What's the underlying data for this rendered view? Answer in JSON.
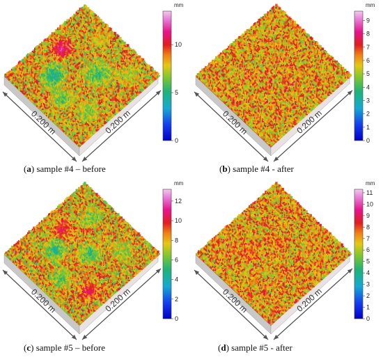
{
  "panels": [
    {
      "id": "a",
      "caption_letter": "(a)",
      "caption_letter_core": "a",
      "caption_text": " sample #4 – before",
      "colorbar": {
        "unit": "mm",
        "ticks": [
          "0",
          "5",
          "10"
        ],
        "max": 13.5
      },
      "dims": [
        "0.200 m",
        "0.200 m"
      ],
      "surface": "before",
      "blobs": [
        {
          "u": 0.32,
          "v": 0.32,
          "r": 0.16,
          "val": 0.25
        },
        {
          "u": 0.22,
          "v": 0.55,
          "r": 0.14,
          "val": 0.4
        },
        {
          "u": 0.55,
          "v": 0.18,
          "r": 0.13,
          "val": 0.95
        },
        {
          "u": 0.62,
          "v": 0.6,
          "r": 0.18,
          "val": 0.35
        },
        {
          "u": 0.3,
          "v": 0.8,
          "r": 0.14,
          "val": 0.45
        },
        {
          "u": 0.85,
          "v": 0.35,
          "r": 0.12,
          "val": 0.55
        },
        {
          "u": 0.8,
          "v": 0.8,
          "r": 0.12,
          "val": 0.5
        }
      ]
    },
    {
      "id": "b",
      "caption_letter": "(b)",
      "caption_letter_core": "b",
      "caption_text": " sample #4 - after",
      "colorbar": {
        "unit": "mm",
        "ticks": [
          "0",
          "1",
          "2",
          "3",
          "4",
          "5",
          "6",
          "7",
          "8",
          "9"
        ],
        "max": 9.7
      },
      "dims": [
        "0.200 m",
        "0.200 m"
      ],
      "surface": "after",
      "blobs": []
    },
    {
      "id": "c",
      "caption_letter": "(c)",
      "caption_letter_core": "c",
      "caption_text": " sample #5 – before",
      "colorbar": {
        "unit": "mm",
        "ticks": [
          "0",
          "2",
          "4",
          "6",
          "8",
          "10",
          "12"
        ],
        "max": 13.2
      },
      "dims": [
        "0.200 m",
        "0.200 m"
      ],
      "surface": "before",
      "blobs": [
        {
          "u": 0.35,
          "v": 0.3,
          "r": 0.14,
          "val": 0.3
        },
        {
          "u": 0.2,
          "v": 0.55,
          "r": 0.12,
          "val": 0.35
        },
        {
          "u": 0.55,
          "v": 0.2,
          "r": 0.12,
          "val": 0.85
        },
        {
          "u": 0.55,
          "v": 0.55,
          "r": 0.13,
          "val": 0.3
        },
        {
          "u": 0.8,
          "v": 0.3,
          "r": 0.12,
          "val": 0.4
        },
        {
          "u": 0.3,
          "v": 0.82,
          "r": 0.12,
          "val": 0.85
        },
        {
          "u": 0.78,
          "v": 0.75,
          "r": 0.13,
          "val": 0.45
        }
      ]
    },
    {
      "id": "d",
      "caption_letter": "(d)",
      "caption_letter_core": "d",
      "caption_text": " sample #5 - after",
      "colorbar": {
        "unit": "mm",
        "ticks": [
          "0",
          "1",
          "2",
          "3",
          "4",
          "5",
          "6",
          "7",
          "8",
          "9",
          "10",
          "11"
        ],
        "max": 11.3
      },
      "dims": [
        "0.200 m",
        "0.200 m"
      ],
      "surface": "after",
      "blobs": [
        {
          "u": 0.35,
          "v": 0.35,
          "r": 0.12,
          "val": 0.8
        },
        {
          "u": 0.6,
          "v": 0.45,
          "r": 0.1,
          "val": 0.78
        }
      ]
    }
  ]
}
